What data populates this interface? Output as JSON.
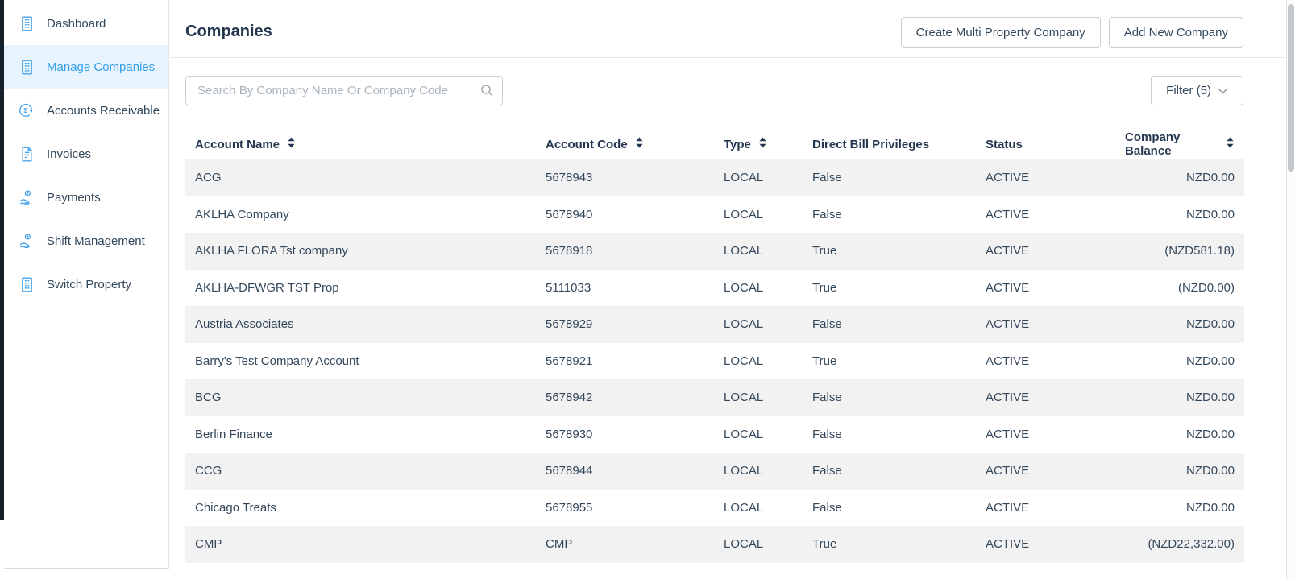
{
  "sidebar": {
    "items": [
      {
        "label": "Dashboard",
        "icon": "building-icon",
        "active": false
      },
      {
        "label": "Manage Companies",
        "icon": "building-icon",
        "active": true
      },
      {
        "label": "Accounts Receivable",
        "icon": "currency-cycle-icon",
        "active": false
      },
      {
        "label": "Invoices",
        "icon": "invoice-icon",
        "active": false
      },
      {
        "label": "Payments",
        "icon": "hand-coin-icon",
        "active": false
      },
      {
        "label": "Shift Management",
        "icon": "hand-coin-icon",
        "active": false
      },
      {
        "label": "Switch Property",
        "icon": "building-icon",
        "active": false
      }
    ]
  },
  "header": {
    "title": "Companies",
    "buttons": [
      {
        "label": "Create Multi Property Company"
      },
      {
        "label": "Add New Company"
      }
    ]
  },
  "toolbar": {
    "search_placeholder": "Search By Company Name Or Company Code",
    "search_value": "",
    "filter_label": "Filter (5)"
  },
  "table": {
    "columns": [
      {
        "label": "Account Name",
        "sortable": true,
        "align": "left"
      },
      {
        "label": "Account Code",
        "sortable": true,
        "align": "left"
      },
      {
        "label": "Type",
        "sortable": true,
        "align": "left"
      },
      {
        "label": "Direct Bill Privileges",
        "sortable": false,
        "align": "left"
      },
      {
        "label": "Status",
        "sortable": false,
        "align": "left"
      },
      {
        "label": "Company Balance",
        "sortable": true,
        "align": "right"
      }
    ],
    "rows": [
      [
        "ACG",
        "5678943",
        "LOCAL",
        "False",
        "ACTIVE",
        "NZD0.00"
      ],
      [
        "AKLHA Company",
        "5678940",
        "LOCAL",
        "False",
        "ACTIVE",
        "NZD0.00"
      ],
      [
        "AKLHA FLORA Tst company",
        "5678918",
        "LOCAL",
        "True",
        "ACTIVE",
        "(NZD581.18)"
      ],
      [
        "AKLHA-DFWGR TST Prop",
        "5111033",
        "LOCAL",
        "True",
        "ACTIVE",
        "(NZD0.00)"
      ],
      [
        "Austria Associates",
        "5678929",
        "LOCAL",
        "False",
        "ACTIVE",
        "NZD0.00"
      ],
      [
        "Barry's Test Company Account",
        "5678921",
        "LOCAL",
        "True",
        "ACTIVE",
        "NZD0.00"
      ],
      [
        "BCG",
        "5678942",
        "LOCAL",
        "False",
        "ACTIVE",
        "NZD0.00"
      ],
      [
        "Berlin Finance",
        "5678930",
        "LOCAL",
        "False",
        "ACTIVE",
        "NZD0.00"
      ],
      [
        "CCG",
        "5678944",
        "LOCAL",
        "False",
        "ACTIVE",
        "NZD0.00"
      ],
      [
        "Chicago Treats",
        "5678955",
        "LOCAL",
        "False",
        "ACTIVE",
        "NZD0.00"
      ],
      [
        "CMP",
        "CMP",
        "LOCAL",
        "True",
        "ACTIVE",
        "(NZD22,332.00)"
      ]
    ]
  },
  "colors": {
    "accent_blue": "#35a0e9",
    "icon_blue": "#4aa4ea",
    "active_item_bg": "#e8f4fd",
    "row_alt_bg": "#f2f2f2",
    "text_dark": "#33475b",
    "heading_dark": "#24364f",
    "border": "#c9ced4",
    "edge_strip": "#16202b"
  }
}
